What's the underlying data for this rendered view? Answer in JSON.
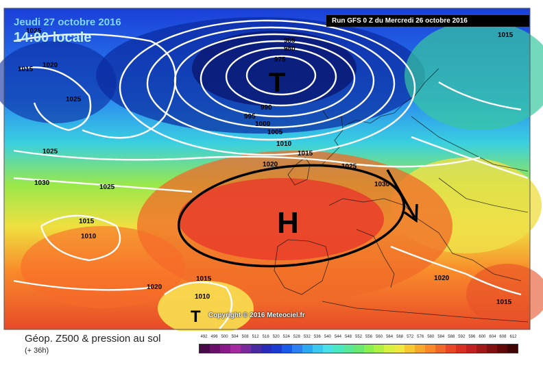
{
  "header": {
    "date_label": "Jeudi 27 octobre 2016",
    "time_label": "14:00 locale",
    "run_label": "Run GFS 0 Z du Mercredi 26 octobre 2016"
  },
  "map": {
    "copyright": "Copyright © 2016 Meteociel.fr",
    "pressure_centers": [
      {
        "symbol": "T",
        "type": "low"
      },
      {
        "symbol": "H",
        "type": "high"
      },
      {
        "symbol": "T",
        "type": "low"
      }
    ],
    "isobar_labels": [
      "1025",
      "1020",
      "1015",
      "1025",
      "985",
      "980",
      "975",
      "990",
      "995",
      "1000",
      "1005",
      "1010",
      "1015",
      "1025",
      "1020",
      "1025",
      "1030",
      "1025",
      "1015",
      "1010",
      "1015",
      "1010",
      "1020",
      "1020",
      "1015",
      "1015",
      "1030"
    ]
  },
  "footer": {
    "caption": "Géop. Z500 & pression au sol",
    "subcaption": "(+ 36h)",
    "legend_values": [
      "492",
      "496",
      "500",
      "504",
      "508",
      "512",
      "516",
      "520",
      "524",
      "528",
      "532",
      "536",
      "540",
      "544",
      "548",
      "552",
      "556",
      "560",
      "564",
      "568",
      "572",
      "576",
      "580",
      "584",
      "588",
      "592",
      "596",
      "600",
      "604",
      "608",
      "612"
    ],
    "legend_colors": [
      "#4a0a4a",
      "#6a106a",
      "#8a1a8a",
      "#a42aa0",
      "#7a2a9a",
      "#4a2aa0",
      "#2a2ab8",
      "#1a3ad0",
      "#1a5ae8",
      "#2a80f0",
      "#2aa8f0",
      "#3ac8f0",
      "#4ae0e8",
      "#4ae8c0",
      "#5ae898",
      "#6ae870",
      "#8af050",
      "#b0f040",
      "#d8f040",
      "#f0e840",
      "#f8c830",
      "#f8a828",
      "#f88828",
      "#f06828",
      "#e84828",
      "#d83020",
      "#c02020",
      "#a01818",
      "#801010",
      "#600808",
      "#400404"
    ]
  }
}
